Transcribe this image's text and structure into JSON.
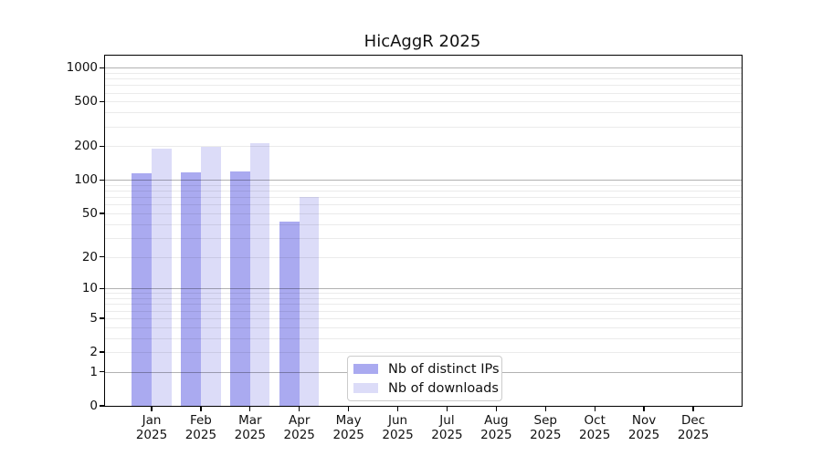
{
  "chart_data": {
    "type": "bar",
    "title": "HicAggR 2025",
    "y_scale": "log10(1+x)",
    "grid": "horizontal major at 1,10,100,1000 plus minor decade subdivisions",
    "legend_position": "inside lower-center",
    "months": [
      "Jan",
      "Feb",
      "Mar",
      "Apr",
      "May",
      "Jun",
      "Jul",
      "Aug",
      "Sep",
      "Oct",
      "Nov",
      "Dec"
    ],
    "year": "2025",
    "y_ticks": [
      0,
      1,
      2,
      5,
      10,
      20,
      50,
      100,
      200,
      500,
      1000
    ],
    "ylim": [
      0,
      1280
    ],
    "series": [
      {
        "name": "Nb of distinct IPs",
        "color": "#aaaaf0",
        "values": [
          114,
          117,
          120,
          42,
          null,
          null,
          null,
          null,
          null,
          null,
          null,
          null
        ]
      },
      {
        "name": "Nb of downloads",
        "color": "#dcdcf8",
        "values": [
          192,
          198,
          215,
          70,
          null,
          null,
          null,
          null,
          null,
          null,
          null,
          null
        ]
      }
    ]
  }
}
